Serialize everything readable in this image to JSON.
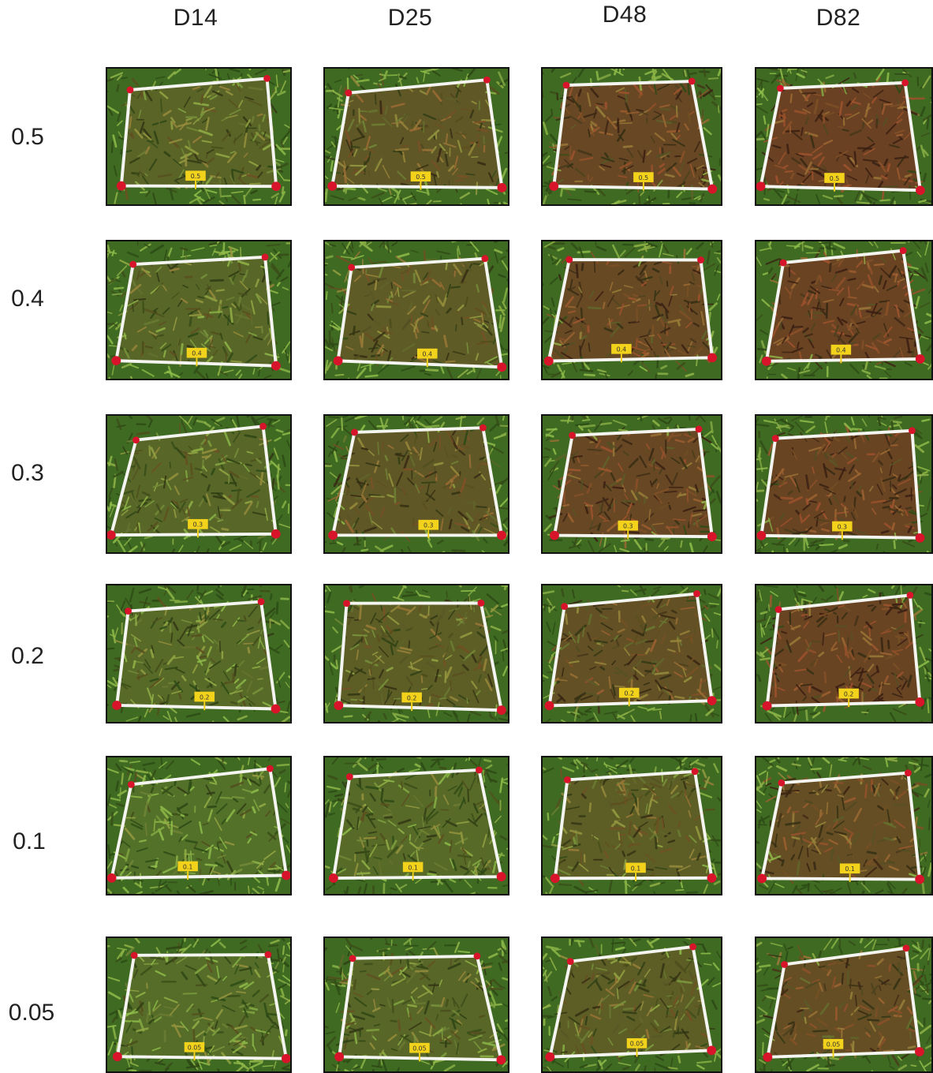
{
  "columns": [
    "D14",
    "D25",
    "D48",
    "D82"
  ],
  "rows": [
    "0.5",
    "0.4",
    "0.3",
    "0.2",
    "0.1",
    "0.05"
  ],
  "tag_labels": [
    "0.5",
    "0.4",
    "0.3",
    "0.2",
    "0.1",
    "0.05"
  ],
  "colors": {
    "grass_green": "#4f7a2a",
    "dead_brown": "#6e3b22",
    "frame_white": "#f4f4f0",
    "marker_red": "#d8142a",
    "tag_yellow": "#f2d21a"
  },
  "panels": [
    {
      "row": "0.5",
      "column": "D14",
      "dieback": 0.35
    },
    {
      "row": "0.5",
      "column": "D25",
      "dieback": 0.55
    },
    {
      "row": "0.5",
      "column": "D48",
      "dieback": 0.8
    },
    {
      "row": "0.5",
      "column": "D82",
      "dieback": 0.9
    },
    {
      "row": "0.4",
      "column": "D14",
      "dieback": 0.3
    },
    {
      "row": "0.4",
      "column": "D25",
      "dieback": 0.5
    },
    {
      "row": "0.4",
      "column": "D48",
      "dieback": 0.78
    },
    {
      "row": "0.4",
      "column": "D82",
      "dieback": 0.88
    },
    {
      "row": "0.3",
      "column": "D14",
      "dieback": 0.3
    },
    {
      "row": "0.3",
      "column": "D25",
      "dieback": 0.55
    },
    {
      "row": "0.3",
      "column": "D48",
      "dieback": 0.8
    },
    {
      "row": "0.3",
      "column": "D82",
      "dieback": 0.85
    },
    {
      "row": "0.2",
      "column": "D14",
      "dieback": 0.25
    },
    {
      "row": "0.2",
      "column": "D25",
      "dieback": 0.45
    },
    {
      "row": "0.2",
      "column": "D48",
      "dieback": 0.65
    },
    {
      "row": "0.2",
      "column": "D82",
      "dieback": 0.85
    },
    {
      "row": "0.1",
      "column": "D14",
      "dieback": 0.15
    },
    {
      "row": "0.1",
      "column": "D25",
      "dieback": 0.25
    },
    {
      "row": "0.1",
      "column": "D48",
      "dieback": 0.45
    },
    {
      "row": "0.1",
      "column": "D82",
      "dieback": 0.72
    },
    {
      "row": "0.05",
      "column": "D14",
      "dieback": 0.2
    },
    {
      "row": "0.05",
      "column": "D25",
      "dieback": 0.3
    },
    {
      "row": "0.05",
      "column": "D48",
      "dieback": 0.45
    },
    {
      "row": "0.05",
      "column": "D82",
      "dieback": 0.7
    }
  ]
}
